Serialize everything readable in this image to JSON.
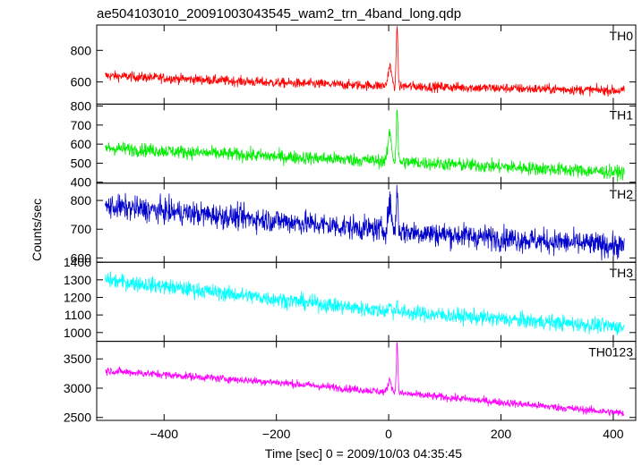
{
  "chart_data": {
    "type": "line",
    "title": "ae504103010_20091003043545_wam2_trn_4band_long.qdp",
    "xlabel": "Time [sec] 0 = 2009/10/03 04:35:45",
    "ylabel": "Counts/sec",
    "xlim": [
      -520,
      440
    ],
    "x_ticks": [
      -400,
      -200,
      0,
      200,
      400
    ],
    "x_range": [
      -505,
      420
    ],
    "burst_time": 15,
    "panels": [
      {
        "name": "TH0",
        "color": "#ff0000",
        "ylim": [
          460,
          960
        ],
        "y_ticks": [
          600,
          800
        ],
        "baseline": [
          [
            -505,
            640
          ],
          [
            -200,
            595
          ],
          [
            0,
            575
          ],
          [
            420,
            545
          ]
        ],
        "noise": 28,
        "precursor": {
          "x": 2,
          "peak": 700
        },
        "peak": {
          "x": 15,
          "value": 960
        }
      },
      {
        "name": "TH1",
        "color": "#00ee00",
        "ylim": [
          395,
          810
        ],
        "y_ticks": [
          400,
          500,
          600,
          700,
          800
        ],
        "baseline": [
          [
            -505,
            580
          ],
          [
            -200,
            535
          ],
          [
            0,
            510
          ],
          [
            420,
            450
          ]
        ],
        "noise": 32,
        "precursor": {
          "x": 2,
          "peak": 660
        },
        "peak": {
          "x": 15,
          "value": 800
        }
      },
      {
        "name": "TH2",
        "color": "#0000cc",
        "ylim": [
          585,
          860
        ],
        "y_ticks": [
          600,
          700,
          800
        ],
        "baseline": [
          [
            -505,
            780
          ],
          [
            -200,
            730
          ],
          [
            0,
            695
          ],
          [
            420,
            640
          ]
        ],
        "noise": 38,
        "precursor": {
          "x": 2,
          "peak": 790
        },
        "peak": {
          "x": 15,
          "value": 845
        }
      },
      {
        "name": "TH3",
        "color": "#00ffff",
        "ylim": [
          950,
          1400
        ],
        "y_ticks": [
          1000,
          1100,
          1200,
          1300,
          1400
        ],
        "baseline": [
          [
            -505,
            1300
          ],
          [
            -200,
            1190
          ],
          [
            0,
            1120
          ],
          [
            420,
            1030
          ]
        ],
        "noise": 40,
        "precursor": {
          "x": 2,
          "peak": 1150
        },
        "peak": {
          "x": 15,
          "value": 1180
        }
      },
      {
        "name": "TH0123",
        "color": "#ff00ff",
        "ylim": [
          2450,
          3800
        ],
        "y_ticks": [
          2500,
          3000,
          3500
        ],
        "baseline": [
          [
            -505,
            3300
          ],
          [
            -200,
            3100
          ],
          [
            0,
            2930
          ],
          [
            420,
            2570
          ]
        ],
        "noise": 60,
        "precursor": {
          "x": 2,
          "peak": 3150
        },
        "peak": {
          "x": 15,
          "value": 3750
        }
      }
    ]
  }
}
